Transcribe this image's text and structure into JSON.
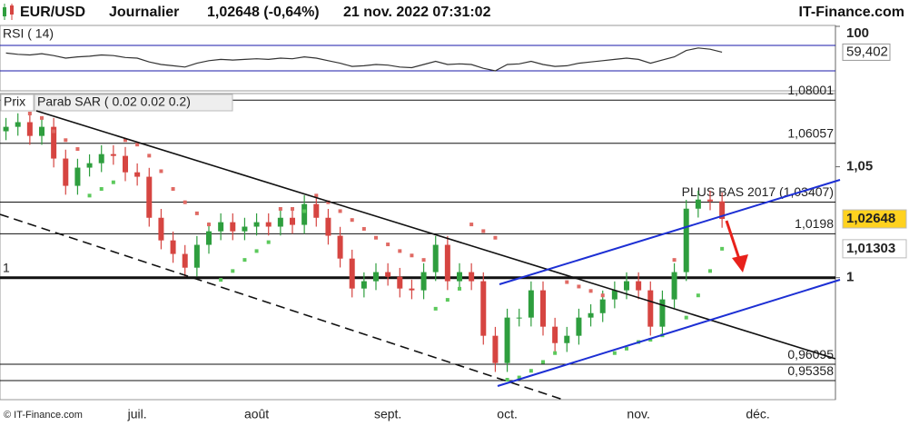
{
  "header": {
    "symbol": "EUR/USD",
    "period": "Journalier",
    "quote": "1,02648 (-0,64%)",
    "datetime": "21 nov. 2022 07:31:02",
    "brand": "IT-Finance.com",
    "footer": "© IT-Finance.com"
  },
  "chart_data": [
    {
      "type": "line",
      "title": "RSI ( 14)",
      "color": "#333333",
      "values": [
        58,
        56,
        55,
        57,
        54,
        50,
        52,
        53,
        55,
        54,
        51,
        50,
        44,
        40,
        38,
        36,
        42,
        46,
        48,
        47,
        48,
        49,
        48,
        50,
        49,
        52,
        50,
        46,
        42,
        37,
        38,
        40,
        39,
        36,
        35,
        40,
        45,
        40,
        41,
        40,
        34,
        30,
        40,
        41,
        45,
        40,
        37,
        38,
        42,
        44,
        46,
        48,
        50,
        48,
        42,
        47,
        52,
        62,
        66,
        64,
        59.402,
        null,
        null,
        null,
        null,
        null,
        null,
        null,
        null,
        null
      ],
      "ylim": [
        0,
        100
      ],
      "yticks": [
        100
      ],
      "levels": [
        30,
        70
      ],
      "level_color": "#1a1aa8",
      "last": {
        "value": 59.402,
        "label": "59,402"
      }
    },
    {
      "type": "candlestick",
      "title": "Prix",
      "up_color": "#2e9e3e",
      "down_color": "#d64541",
      "categories": [
        null,
        null,
        null,
        null,
        null,
        null,
        null,
        null,
        null,
        null,
        null,
        "juil.",
        null,
        null,
        null,
        null,
        null,
        null,
        null,
        null,
        null,
        "août",
        null,
        null,
        null,
        null,
        null,
        null,
        null,
        null,
        null,
        null,
        "sept.",
        null,
        null,
        null,
        null,
        null,
        null,
        null,
        null,
        null,
        "oct.",
        null,
        null,
        null,
        null,
        null,
        null,
        null,
        null,
        null,
        null,
        "nov.",
        null,
        null,
        null,
        null,
        null,
        null,
        null,
        null,
        null,
        "déc.",
        null,
        null,
        null,
        null,
        null,
        null
      ],
      "open": [
        1.066,
        1.068,
        1.0701,
        1.0639,
        1.068,
        1.0537,
        1.0414,
        1.0496,
        1.0516,
        1.0557,
        1.0549,
        1.0475,
        1.0455,
        1.027,
        1.0168,
        1.0107,
        1.0045,
        1.0148,
        1.0209,
        1.025,
        1.0209,
        1.023,
        1.025,
        1.023,
        1.027,
        1.0238,
        1.0332,
        1.027,
        1.0189,
        1.0086,
        0.9951,
        0.9984,
        1.0025,
        1.0004,
        0.9951,
        0.9943,
        1.0025,
        1.0148,
        0.9984,
        1.0025,
        0.9984,
        0.9738,
        0.9615,
        0.982,
        0.982,
        0.9943,
        0.9779,
        0.9705,
        0.9738,
        0.982,
        0.984,
        0.9902,
        0.9943,
        0.9984,
        0.9943,
        0.9779,
        0.9902,
        1.0025,
        1.0311,
        1.0352,
        1.0344,
        null,
        null,
        null,
        null,
        null,
        null,
        null,
        null,
        null
      ],
      "high": [
        1.072,
        1.0741,
        1.0741,
        1.072,
        1.072,
        1.0577,
        1.0536,
        1.0556,
        1.0597,
        1.0597,
        1.0589,
        1.0515,
        1.0495,
        1.031,
        1.0208,
        1.0147,
        1.0188,
        1.0249,
        1.029,
        1.029,
        1.027,
        1.029,
        1.029,
        1.031,
        1.031,
        1.0372,
        1.0372,
        1.031,
        1.0229,
        1.0126,
        1.0024,
        1.0065,
        1.0065,
        1.0044,
        0.9991,
        1.0065,
        1.0188,
        1.0188,
        1.0065,
        1.0065,
        1.0024,
        0.9778,
        0.986,
        0.986,
        0.9983,
        0.9983,
        0.9819,
        0.9778,
        0.986,
        0.988,
        0.9942,
        0.9983,
        1.0024,
        1.0024,
        0.9983,
        0.9942,
        1.0065,
        1.0351,
        1.0392,
        1.0392,
        1.0384,
        null,
        null,
        null,
        null,
        null,
        null,
        null,
        null,
        null
      ],
      "low": [
        1.062,
        1.064,
        1.0599,
        1.0599,
        1.0497,
        1.0374,
        1.0374,
        1.0456,
        1.0476,
        1.0509,
        1.0435,
        1.0415,
        1.023,
        1.0128,
        1.0067,
        1.0005,
        1.0005,
        1.0108,
        1.0169,
        1.0169,
        1.0169,
        1.019,
        1.019,
        1.019,
        1.0198,
        1.0198,
        1.023,
        1.0149,
        1.0046,
        0.9911,
        0.9911,
        0.9944,
        0.9964,
        0.9911,
        0.9903,
        0.9903,
        0.9985,
        0.9944,
        0.9944,
        0.9944,
        0.9698,
        0.9575,
        0.9575,
        0.978,
        0.978,
        0.9739,
        0.9665,
        0.9665,
        0.9698,
        0.978,
        0.98,
        0.9862,
        0.9903,
        0.9903,
        0.9739,
        0.9739,
        0.9862,
        0.9985,
        1.0271,
        1.0304,
        1.0225,
        null,
        null,
        null,
        null,
        null,
        null,
        null,
        null,
        null
      ],
      "close": [
        1.068,
        1.0701,
        1.0639,
        1.068,
        1.0537,
        1.0414,
        1.0496,
        1.0516,
        1.0557,
        1.0549,
        1.0475,
        1.0455,
        1.027,
        1.0168,
        1.0107,
        1.0045,
        1.0148,
        1.0209,
        1.025,
        1.0209,
        1.023,
        1.025,
        1.023,
        1.027,
        1.0238,
        1.0332,
        1.027,
        1.0189,
        1.0086,
        0.9951,
        0.9984,
        1.0025,
        1.0004,
        0.9951,
        0.9943,
        1.0025,
        1.0148,
        0.9984,
        1.0025,
        0.9984,
        0.9738,
        0.9615,
        0.982,
        0.982,
        0.9943,
        0.9779,
        0.9705,
        0.9738,
        0.982,
        0.984,
        0.9902,
        0.9943,
        0.9984,
        0.9943,
        0.9779,
        0.9902,
        1.0025,
        1.0311,
        1.0352,
        1.0344,
        1.02648,
        null,
        null,
        null,
        null,
        null,
        null,
        null,
        null,
        null
      ],
      "sar": {
        "name": "Parab SAR ( 0.02 0.02 0.2)",
        "up_color": "#5cc95c",
        "down_color": "#e06a64",
        "values": [
          1.078,
          1.076,
          1.074,
          1.072,
          1.066,
          1.062,
          1.058,
          1.037,
          1.04,
          1.043,
          1.062,
          1.06,
          1.055,
          1.048,
          1.04,
          1.034,
          1.029,
          1.024,
          0.999,
          1.003,
          1.008,
          1.012,
          1.016,
          1.031,
          1.031,
          1.03,
          1.037,
          1.034,
          1.03,
          1.026,
          1.022,
          1.018,
          1.015,
          1.012,
          1.01,
          1.008,
          0.986,
          0.99,
          0.995,
          1.024,
          1.021,
          1.018,
          0.954,
          0.955,
          0.958,
          0.962,
          0.966,
          0.998,
          0.996,
          0.994,
          0.992,
          0.966,
          0.968,
          0.971,
          0.972,
          0.974,
          1.008,
          0.982,
          0.992,
          1.003,
          1.01303,
          null,
          null,
          null,
          null,
          null,
          null,
          null,
          null,
          null
        ]
      },
      "ylim": [
        0.945,
        1.083
      ],
      "yticks": [
        {
          "value": 1.05,
          "label": "1,05"
        },
        1
      ],
      "levels": [
        {
          "value": 1.08001,
          "label": "1,08001"
        },
        {
          "value": 1.06057,
          "label": "1,06057"
        },
        {
          "value": 1.03407,
          "label": "PLUS BAS 2017 (1,03407)"
        },
        {
          "value": 1.0198,
          "label": "1,0198"
        },
        {
          "value": 1,
          "label": "1",
          "bold": true,
          "side": "left"
        },
        {
          "value": 0.96095,
          "label": "0,96095"
        },
        {
          "value": 0.95358,
          "label": "0,95358"
        }
      ],
      "price_tags": [
        {
          "value": 1.02648,
          "label": "1,02648",
          "background": "#ffd21f",
          "text_color": "#000000"
        },
        {
          "value": 1.01303,
          "label": "1,01303",
          "background": "#ffffff",
          "text_color": "#2e9e3e"
        }
      ]
    }
  ]
}
